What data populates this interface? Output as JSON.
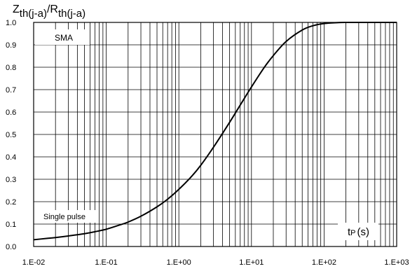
{
  "chart_data": {
    "type": "line",
    "title": {
      "main1": "Z",
      "sub1": "th(j-a)",
      "slash": "/",
      "main2": "R",
      "sub2": "th(j-a)"
    },
    "xlabel": {
      "main": "t",
      "sub": "P",
      "unit": "(s)"
    },
    "x_scale": "log",
    "xlim": [
      0.01,
      1000
    ],
    "ylim": [
      0,
      1
    ],
    "grid": true,
    "x_ticks": [
      {
        "value": 0.01,
        "label": "1.E-02"
      },
      {
        "value": 0.1,
        "label": "1.E-01"
      },
      {
        "value": 1,
        "label": "1.E+00"
      },
      {
        "value": 10,
        "label": "1.E+01"
      },
      {
        "value": 100,
        "label": "1.E+02"
      },
      {
        "value": 1000,
        "label": "1.E+03"
      }
    ],
    "y_ticks": [
      {
        "value": 0.0,
        "label": "0.0"
      },
      {
        "value": 0.1,
        "label": "0.1"
      },
      {
        "value": 0.2,
        "label": "0.2"
      },
      {
        "value": 0.3,
        "label": "0.3"
      },
      {
        "value": 0.4,
        "label": "0.4"
      },
      {
        "value": 0.5,
        "label": "0.5"
      },
      {
        "value": 0.6,
        "label": "0.6"
      },
      {
        "value": 0.7,
        "label": "0.7"
      },
      {
        "value": 0.8,
        "label": "0.8"
      },
      {
        "value": 0.9,
        "label": "0.9"
      },
      {
        "value": 1.0,
        "label": "1.0"
      }
    ],
    "annotations": [
      {
        "id": "package",
        "text": "SMA"
      },
      {
        "id": "pulse",
        "text": "Single pulse"
      }
    ],
    "series": [
      {
        "x": [
          0.01,
          0.015,
          0.02,
          0.03,
          0.05,
          0.07,
          0.1,
          0.15,
          0.2,
          0.3,
          0.5,
          0.7,
          1,
          1.5,
          2,
          3,
          5,
          7,
          10,
          15,
          20,
          30,
          50,
          70,
          100,
          150,
          200,
          300,
          500,
          1000
        ],
        "y": [
          0.03,
          0.036,
          0.04,
          0.047,
          0.057,
          0.066,
          0.077,
          0.095,
          0.109,
          0.135,
          0.177,
          0.211,
          0.255,
          0.313,
          0.362,
          0.443,
          0.554,
          0.631,
          0.712,
          0.799,
          0.852,
          0.915,
          0.966,
          0.985,
          0.995,
          0.999,
          1.0,
          1.0,
          1.0,
          1.0
        ]
      }
    ]
  }
}
